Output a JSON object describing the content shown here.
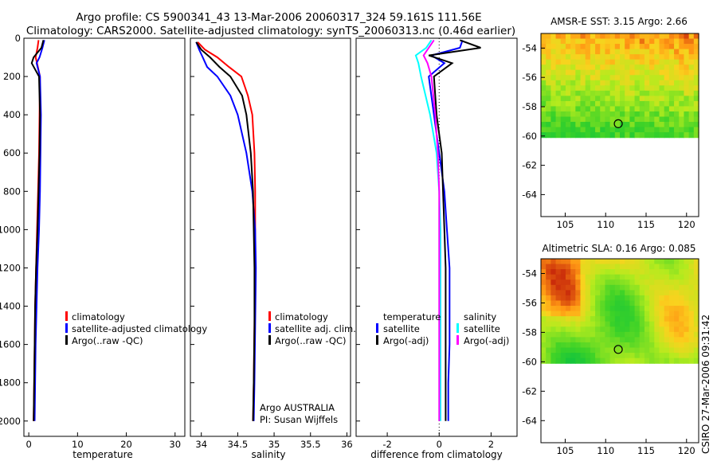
{
  "header": {
    "line1": "Argo profile: CS 5900341_43 13-Mar-2006 20060317_324 59.161S 111.56E",
    "line2": "Climatology: CARS2000. Satellite-adjusted climatology: synTS_20060313.nc (0.46d earlier)"
  },
  "credit": "CSIRO 27-Mar-2006 09:31:42",
  "colors": {
    "climatology": "#ff0000",
    "satellite": "#0000ff",
    "argo": "#000000",
    "cyan": "#00ffff",
    "magenta": "#ff00ff"
  },
  "chart_data": [
    {
      "type": "line",
      "xlabel": "temperature",
      "ylabel": "",
      "xlim": [
        -1,
        32
      ],
      "ylim": [
        2080,
        0
      ],
      "xticks": [
        0,
        10,
        20,
        30
      ],
      "yticks": [
        0,
        200,
        400,
        600,
        800,
        1000,
        1200,
        1400,
        1600,
        1800,
        2000
      ],
      "legend": [
        "climatology",
        "satellite-adjusted climatology",
        "Argo(..raw -QC)"
      ],
      "legend_loc": "lower-right",
      "series": [
        {
          "name": "climatology",
          "color": "#ff0000",
          "x": [
            2.0,
            1.8,
            1.4,
            1.7,
            2.3,
            2.2,
            2.1,
            1.9,
            1.7,
            1.5,
            1.3,
            1.2,
            1.1,
            1.0
          ],
          "y": [
            10,
            50,
            100,
            130,
            200,
            400,
            600,
            800,
            1000,
            1200,
            1400,
            1600,
            1800,
            2000
          ]
        },
        {
          "name": "satellite-adjusted climatology",
          "color": "#0000ff",
          "x": [
            3.2,
            2.8,
            2.2,
            1.6,
            2.3,
            2.5,
            2.4,
            2.3,
            2.1,
            1.8,
            1.6,
            1.4,
            1.3,
            1.2
          ],
          "y": [
            10,
            50,
            100,
            130,
            200,
            400,
            600,
            800,
            1000,
            1200,
            1400,
            1600,
            1800,
            2000
          ]
        },
        {
          "name": "Argo(..raw -QC)",
          "color": "#000000",
          "x": [
            3.0,
            2.6,
            1.0,
            0.6,
            2.1,
            2.3,
            2.2,
            2.0,
            1.8,
            1.5,
            1.3,
            1.2,
            1.1,
            1.0
          ],
          "y": [
            10,
            50,
            100,
            130,
            200,
            400,
            600,
            800,
            1000,
            1200,
            1400,
            1600,
            1800,
            2000
          ]
        }
      ]
    },
    {
      "type": "line",
      "xlabel": "salinity",
      "xlim": [
        33.85,
        36.05
      ],
      "ylim": [
        2080,
        0
      ],
      "xticks": [
        34,
        34.5,
        35,
        35.5,
        36
      ],
      "legend": [
        "climatology",
        "satellite adj. clim.",
        "Argo(..raw -QC)"
      ],
      "legend_loc": "lower-right",
      "annotations": [
        "Argo AUSTRALIA",
        "PI: Susan Wijffels"
      ],
      "series": [
        {
          "name": "climatology",
          "color": "#ff0000",
          "x": [
            33.95,
            34.05,
            34.22,
            34.38,
            34.55,
            34.64,
            34.7,
            34.73,
            34.74,
            34.74,
            34.74,
            34.73,
            34.72,
            34.71
          ],
          "y": [
            20,
            60,
            100,
            150,
            200,
            300,
            400,
            600,
            800,
            1000,
            1200,
            1500,
            1800,
            2000
          ]
        },
        {
          "name": "satellite adj. clim.",
          "color": "#0000ff",
          "x": [
            33.93,
            33.97,
            34.02,
            34.08,
            34.22,
            34.4,
            34.5,
            34.62,
            34.7,
            34.74,
            34.75,
            34.74,
            34.73,
            34.72
          ],
          "y": [
            20,
            60,
            100,
            150,
            200,
            300,
            400,
            600,
            800,
            1000,
            1200,
            1500,
            1800,
            2000
          ]
        },
        {
          "name": "Argo(..raw -QC)",
          "color": "#000000",
          "x": [
            33.93,
            34.0,
            34.12,
            34.25,
            34.4,
            34.56,
            34.62,
            34.68,
            34.71,
            34.72,
            34.73,
            34.73,
            34.72,
            34.71
          ],
          "y": [
            20,
            60,
            100,
            150,
            200,
            300,
            400,
            600,
            800,
            1000,
            1200,
            1500,
            1800,
            2000
          ]
        }
      ]
    },
    {
      "type": "line",
      "xlabel": "difference from climatology",
      "xlim": [
        -3.2,
        3.0
      ],
      "ylim": [
        2080,
        0
      ],
      "xticks": [
        -2,
        0,
        2
      ],
      "legend_left_title": "temperature",
      "legend_right_title": "salinity",
      "legend_left": [
        "satellite",
        "Argo(-adj)"
      ],
      "legend_right": [
        "satellite",
        "Argo(-adj)"
      ],
      "legend_loc": "lower-center",
      "zero_line": "dotted",
      "series": [
        {
          "name": "temperature satellite",
          "color": "#0000ff",
          "x": [
            0.9,
            0.8,
            -0.3,
            0.2,
            -0.4,
            -0.2,
            0.0,
            0.2,
            0.3,
            0.4,
            0.4,
            0.4,
            0.35,
            0.35
          ],
          "y": [
            10,
            50,
            90,
            130,
            200,
            400,
            600,
            800,
            1000,
            1200,
            1400,
            1600,
            1800,
            2000
          ]
        },
        {
          "name": "temperature Argo(-adj)",
          "color": "#000000",
          "x": [
            0.8,
            1.6,
            -0.4,
            0.5,
            -0.2,
            -0.1,
            0.1,
            0.15,
            0.2,
            0.25,
            0.25,
            0.25,
            0.25,
            0.25
          ],
          "y": [
            10,
            50,
            90,
            130,
            200,
            400,
            600,
            800,
            1000,
            1200,
            1400,
            1600,
            1800,
            2000
          ]
        },
        {
          "name": "salinity satellite",
          "color": "#00ffff",
          "x": [
            -0.3,
            -0.5,
            -0.9,
            -0.8,
            -0.7,
            -0.35,
            -0.1,
            0.0,
            0.05,
            0.05,
            0.05,
            0.05,
            0.05,
            0.05
          ],
          "y": [
            10,
            50,
            90,
            130,
            200,
            400,
            600,
            800,
            1000,
            1200,
            1400,
            1600,
            1800,
            2000
          ]
        },
        {
          "name": "salinity Argo(-adj)",
          "color": "#ff00ff",
          "x": [
            -0.2,
            -0.4,
            -0.6,
            -0.45,
            -0.3,
            -0.15,
            -0.05,
            0.0,
            0.0,
            0.0,
            0.0,
            0.0,
            0.0,
            0.0
          ],
          "y": [
            10,
            50,
            90,
            130,
            200,
            400,
            600,
            800,
            1000,
            1200,
            1400,
            1600,
            1800,
            2000
          ]
        }
      ]
    },
    {
      "type": "heatmap",
      "title": "AMSR-E SST: 3.15 Argo: 2.66",
      "xlim": [
        102,
        121.5
      ],
      "ylim": [
        -65.5,
        -53
      ],
      "data_ylim": [
        -60.1,
        -53
      ],
      "xticks": [
        105,
        110,
        115,
        120
      ],
      "yticks": [
        -54,
        -56,
        -58,
        -60,
        -62,
        -64
      ],
      "marker": {
        "x": 111.56,
        "y": -59.16
      }
    },
    {
      "type": "heatmap",
      "title": "Altimetric SLA: 0.16 Argo: 0.085",
      "xlim": [
        102,
        121.5
      ],
      "ylim": [
        -65.5,
        -53
      ],
      "data_ylim": [
        -60.1,
        -53
      ],
      "xticks": [
        105,
        110,
        115,
        120
      ],
      "yticks": [
        -54,
        -56,
        -58,
        -60,
        -62,
        -64
      ],
      "marker": {
        "x": 111.56,
        "y": -59.16
      }
    }
  ]
}
